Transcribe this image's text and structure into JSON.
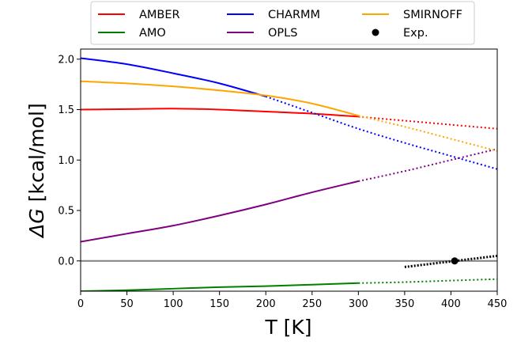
{
  "chart_data": {
    "type": "line",
    "title": "",
    "xlabel": "T [K]",
    "ylabel_prefix": "ΔG",
    "ylabel_unit": "[kcal/mol]",
    "xlim": [
      0,
      450
    ],
    "ylim": [
      -0.3,
      2.1
    ],
    "xticks": [
      "0",
      "50",
      "100",
      "150",
      "200",
      "250",
      "300",
      "350",
      "400",
      "450"
    ],
    "yticks": [
      "0.0",
      "0.5",
      "1.0",
      "1.5",
      "2.0"
    ],
    "grid": false,
    "legend_position": "top-center",
    "zero_line": 0,
    "series": [
      {
        "name": "AMBER",
        "color": "#ff0000",
        "x": [
          0,
          50,
          100,
          150,
          200,
          250,
          300
        ],
        "y": [
          1.5,
          1.505,
          1.51,
          1.5,
          1.48,
          1.46,
          1.43
        ],
        "extrapolation": {
          "x": [
            300,
            350,
            400,
            450
          ],
          "y": [
            1.43,
            1.39,
            1.35,
            1.31
          ]
        }
      },
      {
        "name": "AMO",
        "color": "#008000",
        "x": [
          0,
          50,
          100,
          150,
          200,
          250,
          300
        ],
        "y": [
          -0.3,
          -0.29,
          -0.275,
          -0.26,
          -0.25,
          -0.235,
          -0.22
        ],
        "extrapolation": {
          "x": [
            300,
            350,
            400,
            450
          ],
          "y": [
            -0.22,
            -0.21,
            -0.195,
            -0.18
          ]
        }
      },
      {
        "name": "CHARMM",
        "color": "#0000ff",
        "x": [
          0,
          50,
          100,
          150,
          200
        ],
        "y": [
          2.01,
          1.95,
          1.86,
          1.76,
          1.63
        ],
        "extrapolation": {
          "x": [
            200,
            250,
            300,
            350,
            400,
            450
          ],
          "y": [
            1.63,
            1.47,
            1.31,
            1.17,
            1.04,
            0.91
          ]
        }
      },
      {
        "name": "OPLS",
        "color": "#800080",
        "x": [
          0,
          50,
          100,
          150,
          200,
          250,
          300
        ],
        "y": [
          0.19,
          0.27,
          0.35,
          0.45,
          0.56,
          0.68,
          0.79
        ],
        "extrapolation": {
          "x": [
            300,
            350,
            400,
            450
          ],
          "y": [
            0.79,
            0.89,
            1.0,
            1.11
          ]
        }
      },
      {
        "name": "SMIRNOFF",
        "color": "#ffa500",
        "x": [
          0,
          50,
          100,
          150,
          200,
          250,
          300
        ],
        "y": [
          1.78,
          1.76,
          1.73,
          1.69,
          1.64,
          1.56,
          1.44
        ],
        "extrapolation": {
          "x": [
            300,
            350,
            400,
            450
          ],
          "y": [
            1.44,
            1.33,
            1.21,
            1.09
          ]
        }
      }
    ],
    "experimental": {
      "name": "Exp.",
      "color": "#000000",
      "point": {
        "x": 404,
        "y": 0.0
      },
      "fit": {
        "x": [
          350,
          400,
          450
        ],
        "y": [
          -0.06,
          -0.005,
          0.05
        ]
      }
    }
  }
}
